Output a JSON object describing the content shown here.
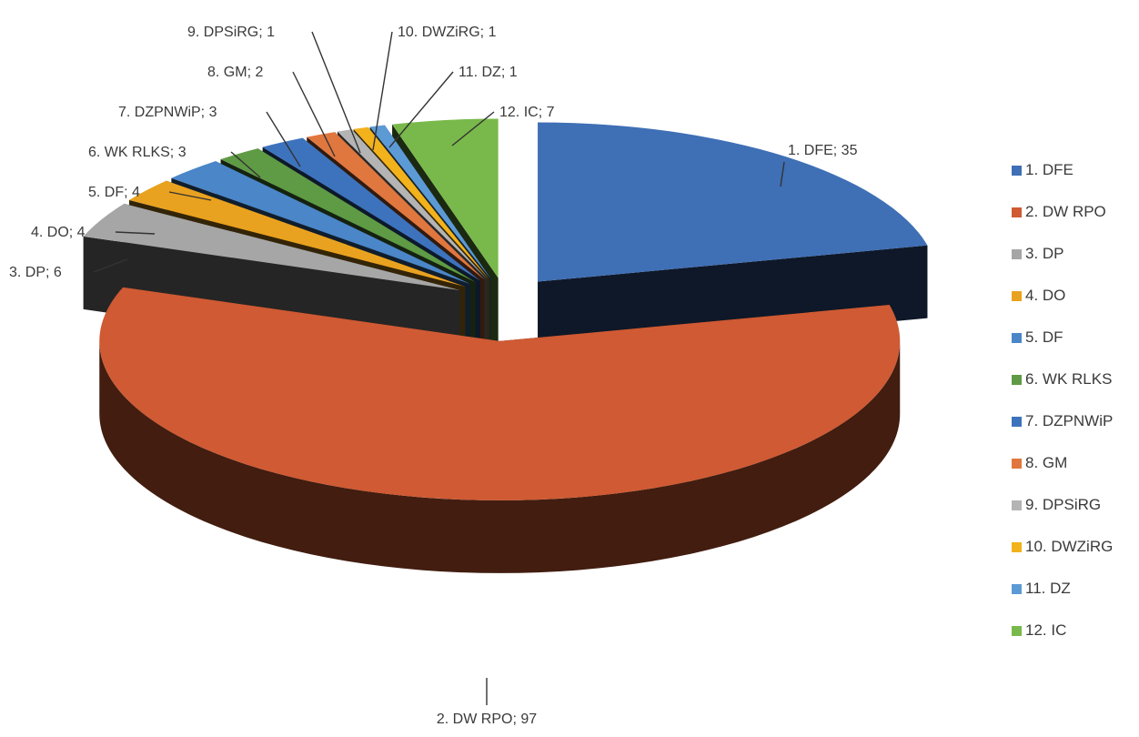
{
  "chart_data": {
    "type": "pie",
    "title": "",
    "style": "3d-exploded",
    "legend_position": "right",
    "categories": [
      "1. DFE",
      "2. DW RPO",
      "3. DP",
      "4. DO",
      "5. DF",
      "6. WK RLKS",
      "7. DZPNWiP",
      "8. GM",
      "9. DPSiRG",
      "10. DWZiRG",
      "11. DZ",
      "12. IC"
    ],
    "values": [
      35,
      97,
      6,
      4,
      4,
      3,
      3,
      2,
      1,
      1,
      1,
      7
    ],
    "data_labels": [
      "1. DFE; 35",
      "2. DW RPO; 97",
      "3. DP; 6",
      "4. DO; 4",
      "5. DF; 4",
      "6. WK RLKS; 3",
      "7. DZPNWiP; 3",
      "8. GM; 2",
      "9. DPSiRG; 1",
      "10. DWZiRG; 1",
      "11. DZ; 1",
      "12. IC; 7"
    ],
    "colors": [
      "#3f6fb5",
      "#cf5a33",
      "#a6a6a6",
      "#e9a21f",
      "#4a86c8",
      "#5f9a45",
      "#3d73bd",
      "#e0773f",
      "#b4b4b4",
      "#f2b21b",
      "#5c9ad6",
      "#79b94b"
    ]
  }
}
